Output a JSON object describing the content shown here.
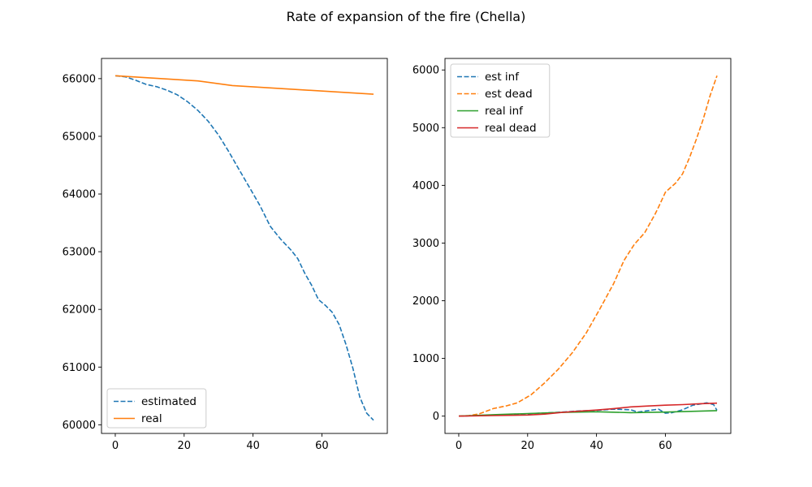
{
  "figure": {
    "title": "Rate of expansion of the fire (Chella)"
  },
  "chart_data": [
    {
      "type": "line",
      "title": "",
      "xlabel": "",
      "ylabel": "",
      "xlim": [
        -4,
        79
      ],
      "ylim": [
        59850,
        66350
      ],
      "xticks": [
        0,
        20,
        40,
        60
      ],
      "yticks": [
        60000,
        61000,
        62000,
        63000,
        64000,
        65000,
        66000
      ],
      "grid": false,
      "legend": "lower-left",
      "series": [
        {
          "name": "estimated",
          "color": "#1f77b4",
          "style": "dashed",
          "x": [
            0,
            3,
            6,
            9,
            12,
            15,
            18,
            21,
            24,
            27,
            30,
            33,
            36,
            39,
            42,
            45,
            48,
            51,
            53,
            55,
            57,
            59,
            61,
            63,
            65,
            67,
            69,
            71,
            73,
            75
          ],
          "y": [
            66050,
            66030,
            65970,
            65900,
            65860,
            65800,
            65720,
            65600,
            65450,
            65260,
            65020,
            64730,
            64420,
            64110,
            63800,
            63440,
            63220,
            63030,
            62880,
            62630,
            62420,
            62170,
            62070,
            61950,
            61740,
            61390,
            60980,
            60480,
            60200,
            60080
          ]
        },
        {
          "name": "real",
          "color": "#ff7f0e",
          "style": "solid",
          "x": [
            0,
            24,
            34,
            75
          ],
          "y": [
            66050,
            65960,
            65880,
            65730
          ]
        }
      ]
    },
    {
      "type": "line",
      "title": "",
      "xlabel": "",
      "ylabel": "",
      "xlim": [
        -4,
        79
      ],
      "ylim": [
        -300,
        6200
      ],
      "xticks": [
        0,
        20,
        40,
        60
      ],
      "yticks": [
        0,
        1000,
        2000,
        3000,
        4000,
        5000,
        6000
      ],
      "grid": false,
      "legend": "upper-left",
      "series": [
        {
          "name": "est inf",
          "color": "#1f77b4",
          "style": "dashed",
          "x": [
            0,
            5,
            10,
            15,
            20,
            25,
            30,
            35,
            40,
            45,
            50,
            52,
            55,
            58,
            60,
            62,
            65,
            68,
            70,
            72,
            74,
            75
          ],
          "y": [
            0,
            10,
            20,
            30,
            40,
            55,
            70,
            90,
            100,
            120,
            110,
            70,
            95,
            120,
            50,
            60,
            110,
            190,
            210,
            230,
            200,
            100
          ]
        },
        {
          "name": "est dead",
          "color": "#ff7f0e",
          "style": "dashed",
          "x": [
            0,
            3,
            6,
            10,
            14,
            17,
            21,
            25,
            29,
            33,
            37,
            41,
            45,
            48,
            51,
            54,
            57,
            58,
            60,
            63,
            65,
            67,
            69,
            71,
            73,
            75
          ],
          "y": [
            0,
            10,
            40,
            130,
            180,
            230,
            370,
            580,
            820,
            1100,
            1440,
            1860,
            2300,
            2700,
            2980,
            3180,
            3500,
            3620,
            3880,
            4040,
            4200,
            4480,
            4800,
            5150,
            5560,
            5900
          ]
        },
        {
          "name": "real inf",
          "color": "#2ca02c",
          "style": "solid",
          "x": [
            0,
            10,
            20,
            30,
            40,
            50,
            60,
            75
          ],
          "y": [
            0,
            25,
            45,
            65,
            75,
            60,
            70,
            95
          ]
        },
        {
          "name": "real dead",
          "color": "#d62728",
          "style": "solid",
          "x": [
            0,
            10,
            20,
            25,
            30,
            35,
            40,
            45,
            50,
            55,
            60,
            65,
            70,
            75
          ],
          "y": [
            0,
            10,
            20,
            35,
            65,
            85,
            105,
            130,
            160,
            175,
            190,
            200,
            215,
            225
          ]
        }
      ]
    }
  ]
}
